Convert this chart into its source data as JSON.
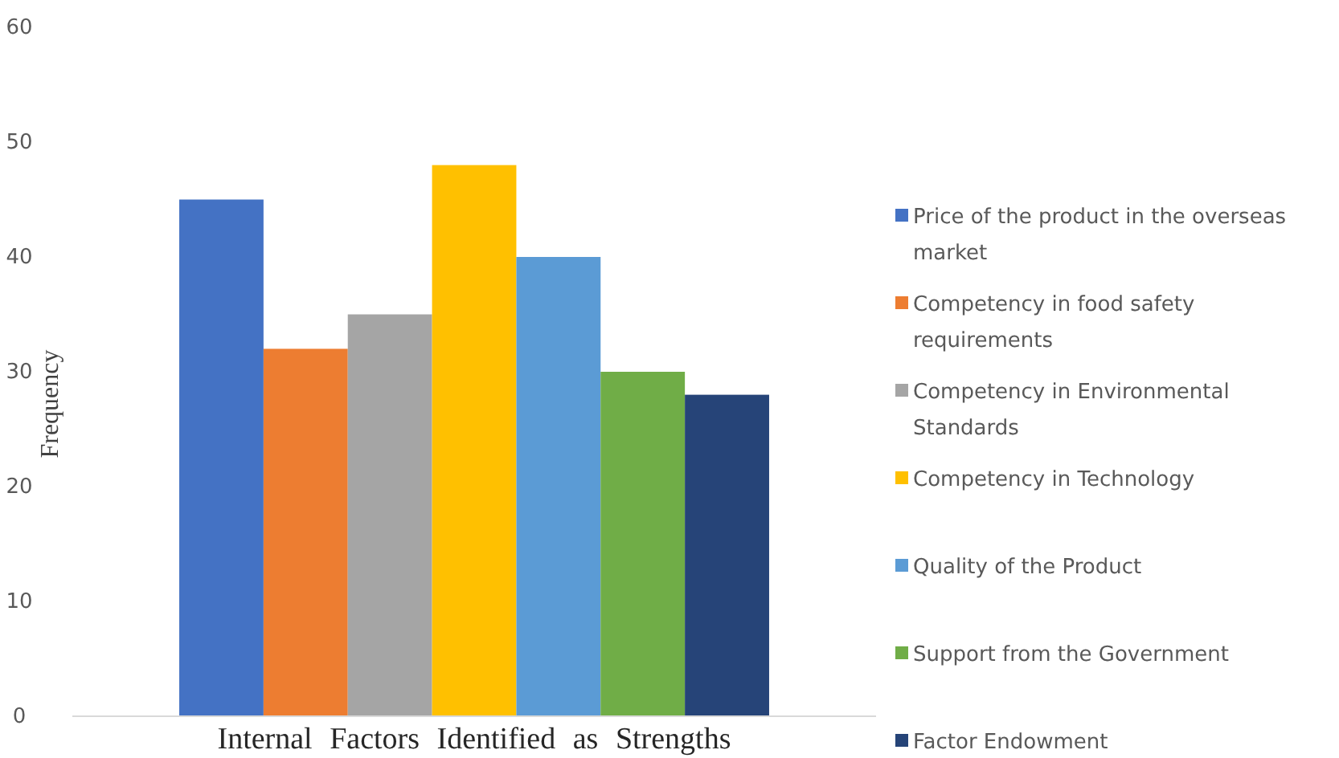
{
  "chart_data": {
    "type": "bar",
    "xlabel": "Internal Factors Identified as Strengths",
    "ylabel": "Frequency",
    "categories": [
      null
    ],
    "series": [
      {
        "name": "Price of the product in the overseas market",
        "color": "#4472c4",
        "values": [
          45
        ]
      },
      {
        "name": "Competency in food safety requirements",
        "color": "#ed7d31",
        "values": [
          32
        ]
      },
      {
        "name": "Competency in Environmental Standards",
        "color": "#a5a5a5",
        "values": [
          35
        ]
      },
      {
        "name": "Competency in Technology",
        "color": "#ffc000",
        "values": [
          48
        ]
      },
      {
        "name": "Quality of the Product",
        "color": "#5b9bd5",
        "values": [
          40
        ]
      },
      {
        "name": "Support from the Government",
        "color": "#70ad47",
        "values": [
          30
        ]
      },
      {
        "name": "Factor Endowment",
        "color": "#264478",
        "values": [
          28
        ]
      }
    ],
    "ylim": [
      0,
      60
    ],
    "yticks": [
      0,
      10,
      20,
      30,
      40,
      50,
      60
    ],
    "grid": false,
    "legend": "right"
  }
}
